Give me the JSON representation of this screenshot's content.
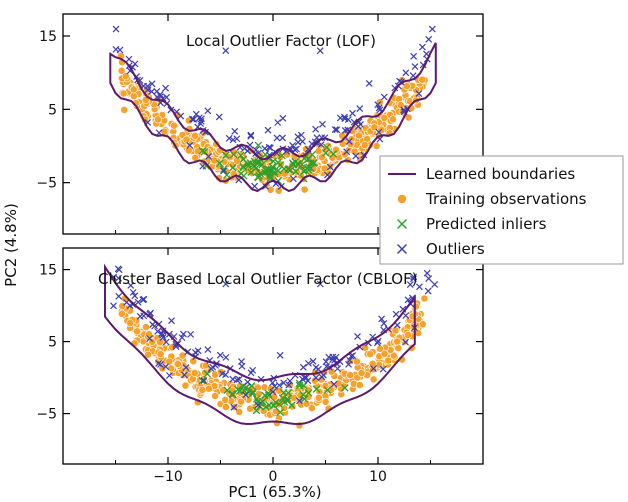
{
  "chart_data": [
    {
      "type": "scatter",
      "title": "Local Outlier Factor (LOF)",
      "xlabel": "PC1 (65.3%)",
      "ylabel": "PC2 (4.8%)",
      "xlim": [
        -20,
        20
      ],
      "ylim": [
        -12,
        18
      ],
      "xticks": [
        -10,
        0,
        10
      ],
      "xtick_labels": [
        "",
        "",
        ""
      ],
      "yticks": [
        -5,
        5,
        15
      ],
      "ytick_labels": [
        "−5",
        "5",
        "15"
      ],
      "grid": false,
      "legend_position": "right",
      "series": [
        {
          "name": "Learned boundaries",
          "marker": "line",
          "color": "#5b1a6e"
        },
        {
          "name": "Training observations",
          "marker": "circle",
          "color": "#f7a12b"
        },
        {
          "name": "Predicted inliers",
          "marker": "x",
          "color": "#2ca02c"
        },
        {
          "name": "Outliers",
          "marker": "x",
          "color": "#3b3db5"
        }
      ]
    },
    {
      "type": "scatter",
      "title": "Cluster Based Local Outlier Factor (CBLOF)",
      "xlabel": "PC1 (65.3%)",
      "ylabel": "PC2 (4.8%)",
      "xlim": [
        -20,
        20
      ],
      "ylim": [
        -12,
        18
      ],
      "xticks": [
        -10,
        0,
        10
      ],
      "xtick_labels": [
        "−10",
        "0",
        "10"
      ],
      "yticks": [
        -5,
        5,
        15
      ],
      "ytick_labels": [
        "−5",
        "5",
        "15"
      ],
      "grid": false,
      "series": [
        {
          "name": "Learned boundaries",
          "marker": "line",
          "color": "#5b1a6e"
        },
        {
          "name": "Training observations",
          "marker": "circle",
          "color": "#f7a12b"
        },
        {
          "name": "Predicted inliers",
          "marker": "x",
          "color": "#2ca02c"
        },
        {
          "name": "Outliers",
          "marker": "x",
          "color": "#3b3db5"
        }
      ]
    }
  ],
  "legend": {
    "items": [
      {
        "label": "Learned boundaries",
        "marker": "line",
        "color": "#5b1a6e"
      },
      {
        "label": "Training observations",
        "marker": "circle",
        "color": "#f7a12b"
      },
      {
        "label": "Predicted inliers",
        "marker": "x",
        "color": "#2ca02c"
      },
      {
        "label": "Outliers",
        "marker": "x",
        "color": "#3b3db5"
      }
    ]
  },
  "shared": {
    "xlabel": "PC1 (65.3%)",
    "ylabel": "PC2 (4.8%)"
  }
}
